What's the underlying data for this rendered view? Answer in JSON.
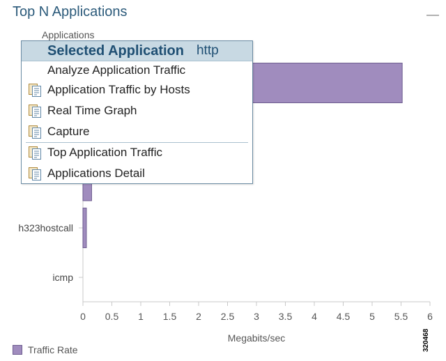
{
  "panel": {
    "title": "Top N Applications"
  },
  "chart_data": {
    "type": "bar",
    "orientation": "horizontal",
    "title": "",
    "ylabel": "Applications",
    "xlabel": "Megabits/sec",
    "categories": [
      "http",
      "",
      "h323hostcall",
      "icmp"
    ],
    "series": [
      {
        "name": "Traffic Rate",
        "values": [
          5.52,
          0.15,
          0.06,
          0.0
        ]
      }
    ],
    "xlim": [
      0,
      6
    ],
    "xticks": [
      "0",
      "0.5",
      "1",
      "1.5",
      "2",
      "2.5",
      "3",
      "3.5",
      "4",
      "4.5",
      "5",
      "5.5",
      "6"
    ],
    "grid": false,
    "legend_position": "bottom-left",
    "bar_color": "#a08cbe",
    "bar_edge_color": "#6d5d8f"
  },
  "context_menu": {
    "header_label": "Selected Application",
    "header_value": "http",
    "items": [
      {
        "label": "Analyze Application Traffic",
        "icon": "none"
      },
      {
        "label": "Application Traffic by Hosts",
        "icon": "report-icon"
      },
      {
        "label": "Real Time Graph",
        "icon": "report-icon"
      },
      {
        "label": "Capture",
        "icon": "report-icon"
      },
      {
        "label": "Top Application Traffic",
        "icon": "report-icon"
      },
      {
        "label": "Applications Detail",
        "icon": "report-icon"
      }
    ]
  },
  "figure_id": "320468"
}
